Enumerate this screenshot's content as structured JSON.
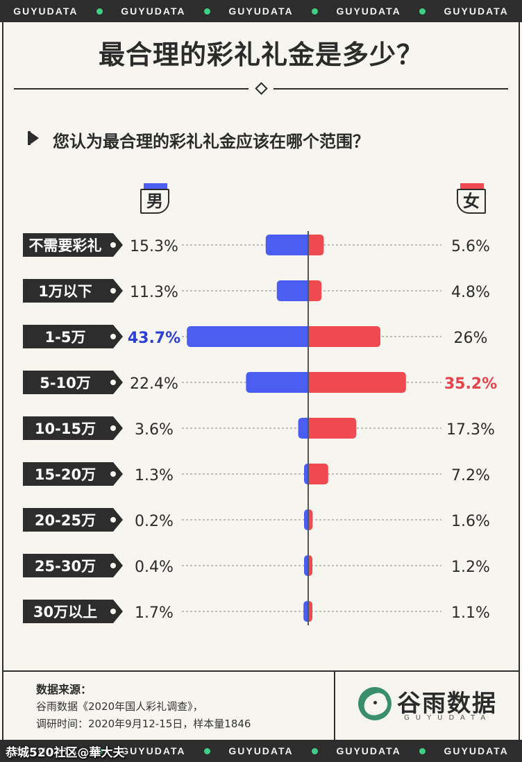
{
  "ribbon_text": "GUYUDATA",
  "title": "最合理的彩礼礼金是多少？",
  "subtitle": "您认为最合理的彩礼礼金应该在哪个范围？",
  "legend": {
    "male": "男",
    "female": "女"
  },
  "colors": {
    "male": "#4a5df0",
    "female": "#ee4a4f",
    "male_highlight": "#2b3fd6",
    "female_highlight": "#e84249",
    "dark": "#2d2d2d",
    "accent": "#3ecf86"
  },
  "chart_data": {
    "type": "bar",
    "orientation": "horizontal-diverging",
    "categories": [
      "不需要彩礼",
      "1万以下",
      "1-5万",
      "5-10万",
      "10-15万",
      "15-20万",
      "20-25万",
      "25-30万",
      "30万以上"
    ],
    "series": [
      {
        "name": "男",
        "values": [
          15.3,
          11.3,
          43.7,
          22.4,
          3.6,
          1.3,
          0.2,
          0.4,
          1.7
        ],
        "labels": [
          "15.3%",
          "11.3%",
          "43.7%",
          "22.4%",
          "3.6%",
          "1.3%",
          "0.2%",
          "0.4%",
          "1.7%"
        ]
      },
      {
        "name": "女",
        "values": [
          5.6,
          4.8,
          26,
          35.2,
          17.3,
          7.2,
          1.6,
          1.2,
          1.1
        ],
        "labels": [
          "5.6%",
          "4.8%",
          "26%",
          "35.2%",
          "17.3%",
          "7.2%",
          "1.6%",
          "1.2%",
          "1.1%"
        ]
      }
    ],
    "highlight": {
      "男": "1-5万",
      "女": "5-10万"
    },
    "unit": "%"
  },
  "source": {
    "label": "数据来源：",
    "line1": "谷雨数据《2020年国人彩礼调查》，",
    "line2": "调研时间：2020年9月12-15日，样本量1846"
  },
  "brand": {
    "name": "谷雨数据",
    "sub": "GUYUDATA"
  },
  "watermark": "恭城520社区@華大夫"
}
